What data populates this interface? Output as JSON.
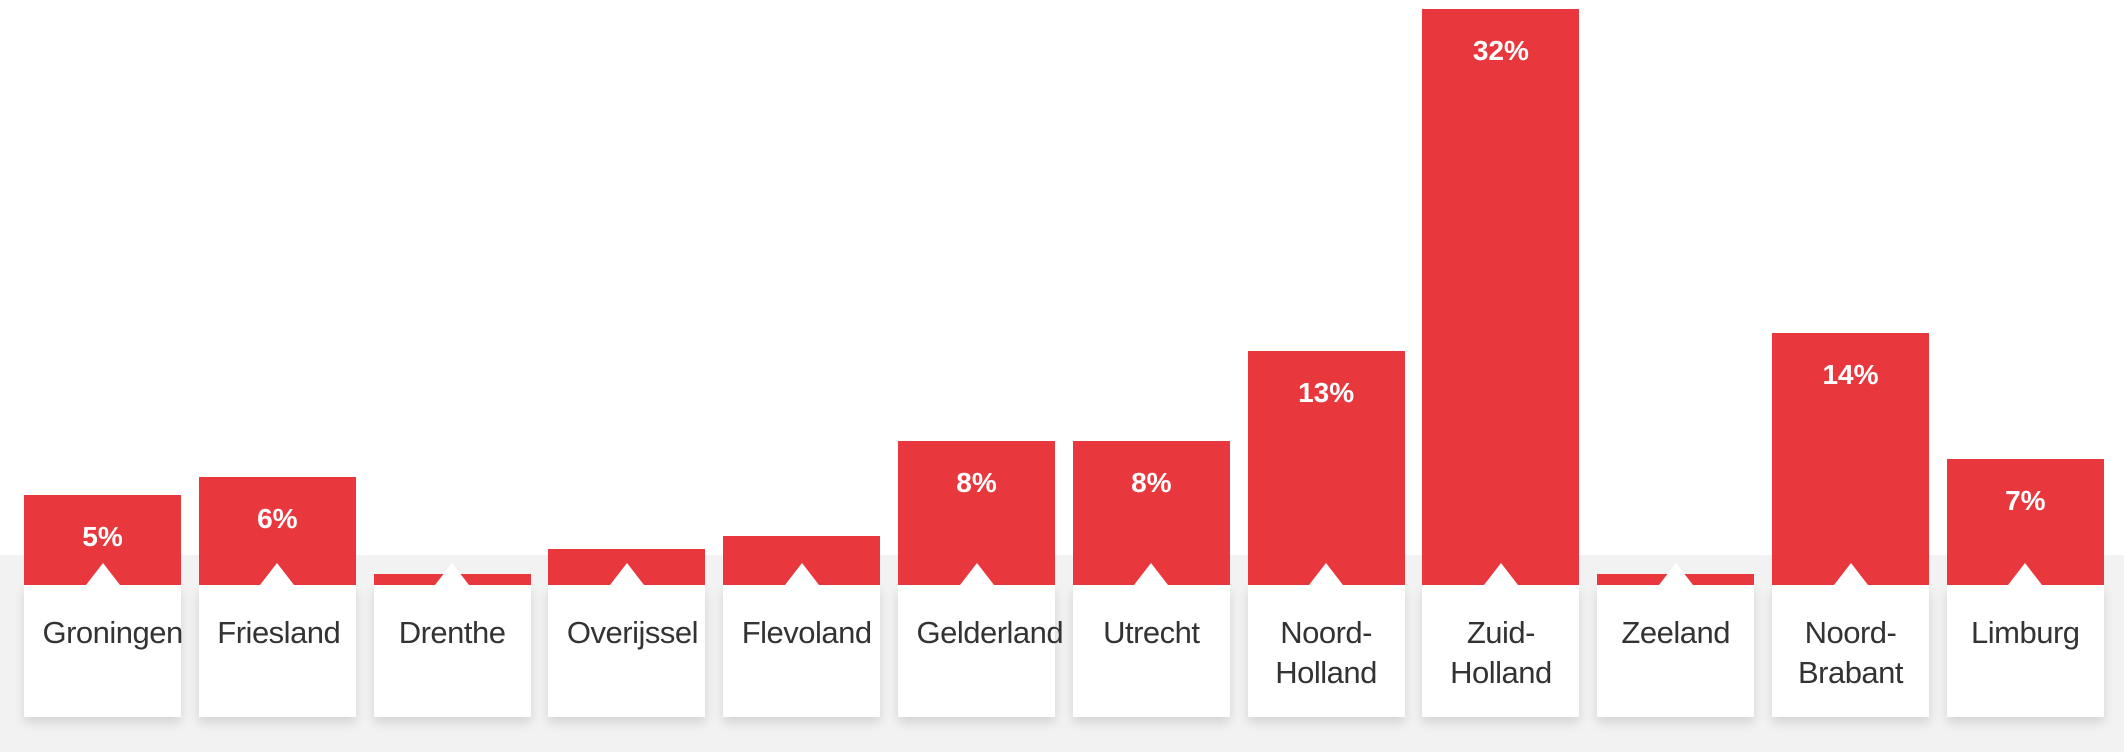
{
  "chart_data": {
    "type": "bar",
    "categories": [
      "Groningen",
      "Friesland",
      "Drenthe",
      "Overijssel",
      "Flevoland",
      "Gelderland",
      "Utrecht",
      "Noord-Holland",
      "Zuid-Holland",
      "Zeeland",
      "Noord-Brabant",
      "Limburg"
    ],
    "values": [
      5,
      6,
      0.6,
      2,
      2.7,
      8,
      8,
      13,
      32,
      0.6,
      14,
      7
    ],
    "value_labels": [
      "5%",
      "6%",
      null,
      null,
      null,
      "8%",
      "8%",
      "13%",
      "32%",
      null,
      "14%",
      "7%"
    ],
    "color": "#e8383d",
    "ylim": [
      0,
      32.5
    ]
  }
}
